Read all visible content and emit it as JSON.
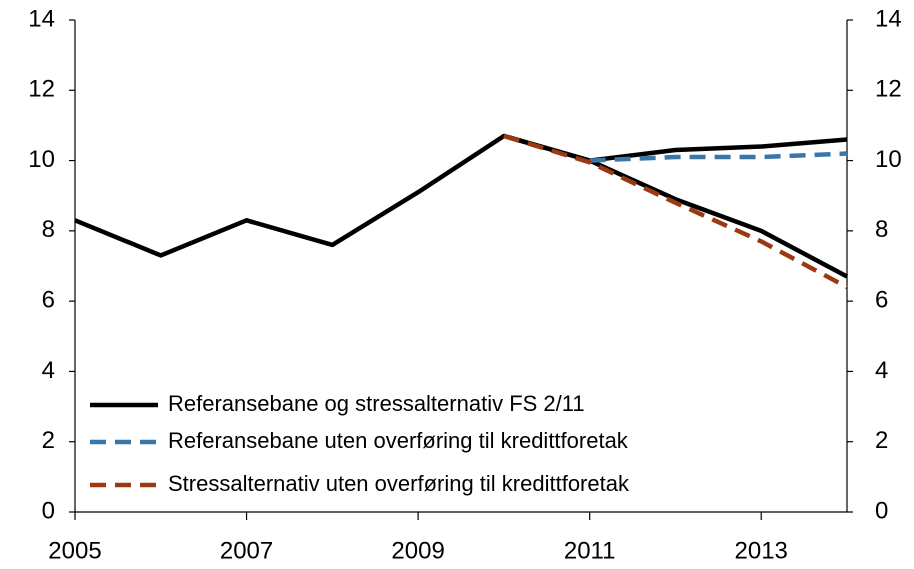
{
  "chart_data": {
    "type": "line",
    "x": [
      2005,
      2006,
      2007,
      2008,
      2009,
      2010,
      2011,
      2012,
      2013,
      2014
    ],
    "series": [
      {
        "name": "Referansebane og stressalternativ FS 2/11",
        "color": "#000000",
        "dash": false,
        "values": [
          8.3,
          7.3,
          8.3,
          7.6,
          9.1,
          10.7,
          10.0,
          10.3,
          10.4,
          10.6
        ]
      },
      {
        "color": "#000000",
        "dash": false,
        "values": [
          null,
          null,
          null,
          null,
          null,
          10.7,
          10.0,
          8.9,
          8.0,
          6.7
        ]
      },
      {
        "name": "Referansebane uten overføring til kredittforetak",
        "color": "#3a76a8",
        "dash": true,
        "values": [
          null,
          null,
          null,
          null,
          null,
          null,
          10.0,
          10.1,
          10.1,
          10.2
        ]
      },
      {
        "name": "Stressalternativ uten overføring til kredittforetak",
        "color": "#9b3a12",
        "dash": true,
        "values": [
          null,
          null,
          null,
          null,
          null,
          10.7,
          9.95,
          8.8,
          7.7,
          6.4
        ]
      }
    ],
    "xlim": [
      2005,
      2014
    ],
    "xticks": [
      2005,
      2007,
      2009,
      2011,
      2013
    ],
    "ylim": [
      0,
      14
    ],
    "yticks": [
      0,
      2,
      4,
      6,
      8,
      10,
      12,
      14
    ],
    "y2lim": [
      0,
      14
    ],
    "y2ticks": [
      0,
      2,
      4,
      6,
      8,
      10,
      12,
      14
    ],
    "legend": "lower left",
    "grid": false
  }
}
